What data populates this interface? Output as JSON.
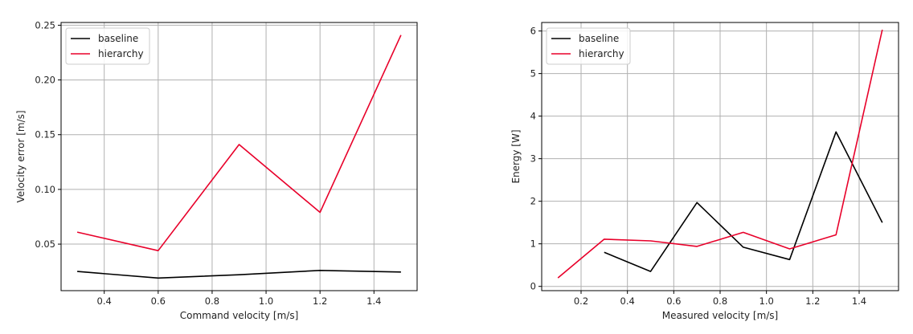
{
  "chart_data": [
    {
      "type": "line",
      "xlabel": "Command velocity [m/s]",
      "ylabel": "Velocity error [m/s]",
      "xlim": [
        0.24,
        1.56
      ],
      "ylim": [
        0.0075,
        0.2525
      ],
      "xticks": [
        0.4,
        0.6,
        0.8,
        1.0,
        1.2,
        1.4
      ],
      "xtick_labels": [
        "0.4",
        "0.6",
        "0.8",
        "1.0",
        "1.2",
        "1.4"
      ],
      "yticks": [
        0.05,
        0.1,
        0.15,
        0.2,
        0.25
      ],
      "ytick_labels": [
        "0.05",
        "0.10",
        "0.15",
        "0.20",
        "0.25"
      ],
      "grid": true,
      "legend": "upper-left",
      "series": [
        {
          "name": "baseline",
          "color": "#000000",
          "x": [
            0.3,
            0.6,
            0.9,
            1.2,
            1.5
          ],
          "y": [
            0.025,
            0.019,
            0.022,
            0.026,
            0.0245
          ]
        },
        {
          "name": "hierarchy",
          "color": "#e8002a",
          "x": [
            0.3,
            0.6,
            0.9,
            1.2,
            1.5
          ],
          "y": [
            0.061,
            0.044,
            0.141,
            0.079,
            0.241
          ]
        }
      ]
    },
    {
      "type": "line",
      "xlabel": "Measured velocity [m/s]",
      "ylabel": "Energy [W]",
      "xlim": [
        0.03,
        1.57
      ],
      "ylim": [
        -0.1,
        6.2
      ],
      "xticks": [
        0.2,
        0.4,
        0.6,
        0.8,
        1.0,
        1.2,
        1.4
      ],
      "xtick_labels": [
        "0.2",
        "0.4",
        "0.6",
        "0.8",
        "1.0",
        "1.2",
        "1.4"
      ],
      "yticks": [
        0,
        1,
        2,
        3,
        4,
        5,
        6
      ],
      "ytick_labels": [
        "0",
        "1",
        "2",
        "3",
        "4",
        "5",
        "6"
      ],
      "grid": true,
      "legend": "upper-left",
      "series": [
        {
          "name": "baseline",
          "color": "#000000",
          "x": [
            0.3,
            0.5,
            0.7,
            0.9,
            1.1,
            1.3,
            1.5
          ],
          "y": [
            0.8,
            0.35,
            1.97,
            0.92,
            0.63,
            3.63,
            1.5
          ]
        },
        {
          "name": "hierarchy",
          "color": "#e8002a",
          "x": [
            0.1,
            0.3,
            0.5,
            0.7,
            0.9,
            1.1,
            1.3,
            1.5
          ],
          "y": [
            0.2,
            1.11,
            1.07,
            0.94,
            1.27,
            0.88,
            1.21,
            6.03
          ]
        }
      ]
    }
  ]
}
